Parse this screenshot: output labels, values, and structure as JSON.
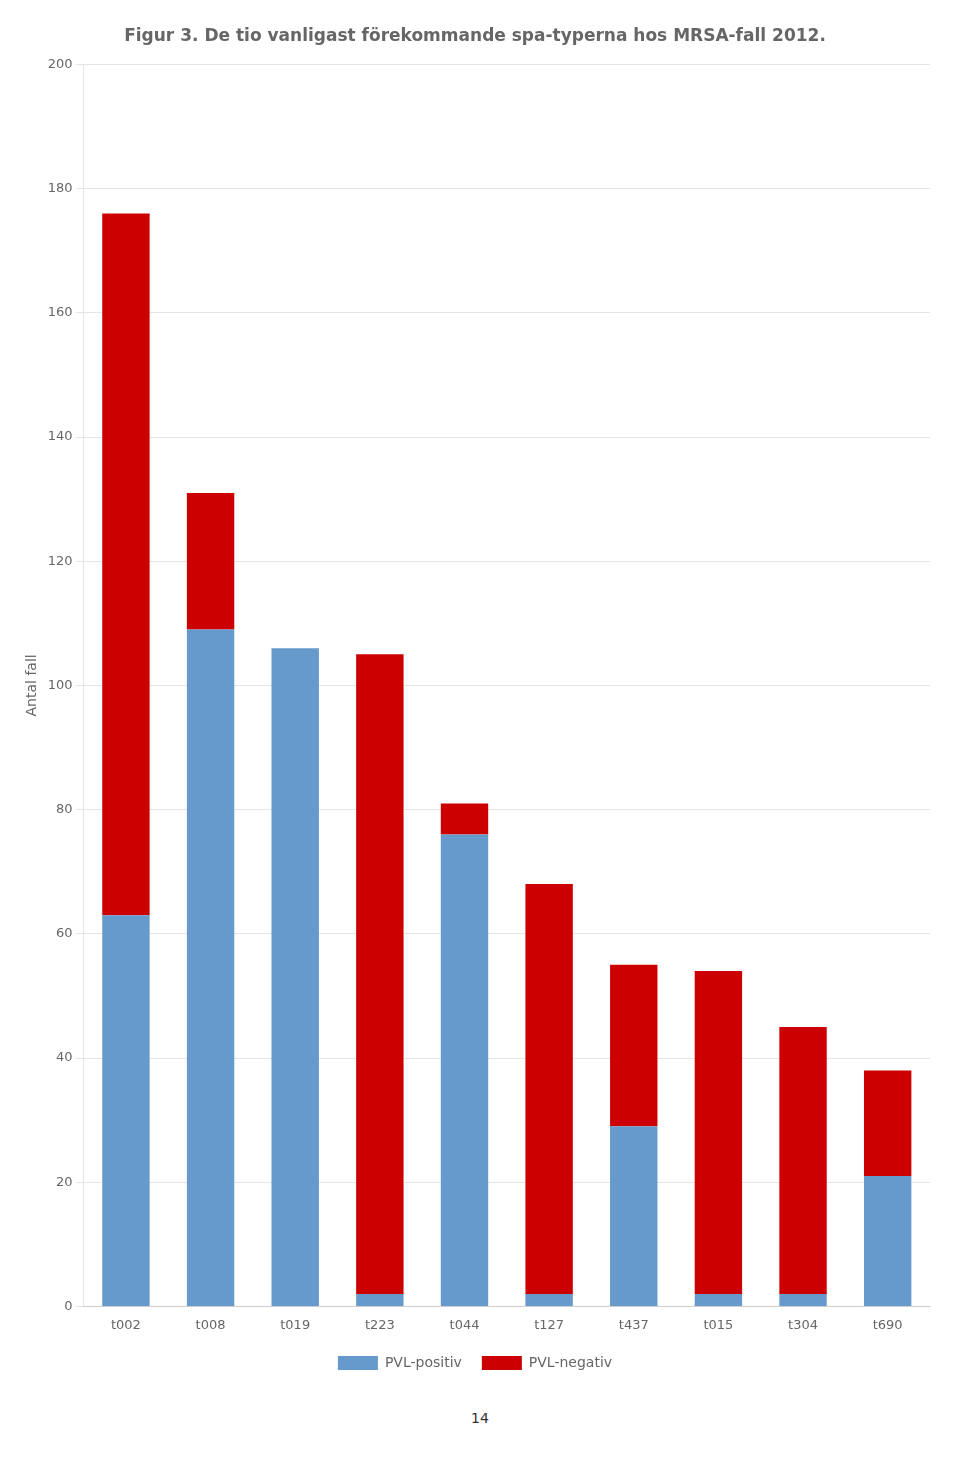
{
  "chart_data": {
    "type": "bar",
    "title": "Figur 3. De tio vanligast förekommande spa-typerna hos MRSA-fall 2012.",
    "ylabel": "Antal fall",
    "categories": [
      "t002",
      "t008",
      "t019",
      "t223",
      "t044",
      "t127",
      "t437",
      "t015",
      "t304",
      "t690"
    ],
    "series": [
      {
        "name": "PVL-positiv",
        "color": "#6699cc",
        "values": [
          63,
          109,
          106,
          2,
          76,
          2,
          29,
          2,
          2,
          21
        ]
      },
      {
        "name": "PVL-negativ",
        "color": "#cc0000",
        "values": [
          113,
          22,
          0,
          103,
          5,
          66,
          26,
          52,
          43,
          17
        ]
      }
    ],
    "ylim": [
      0,
      200
    ],
    "yticks": [
      0,
      20,
      40,
      60,
      80,
      100,
      120,
      140,
      160,
      180,
      200
    ],
    "grid": true,
    "stacked": true,
    "legend": "bottom",
    "annotations": [
      "14"
    ]
  }
}
